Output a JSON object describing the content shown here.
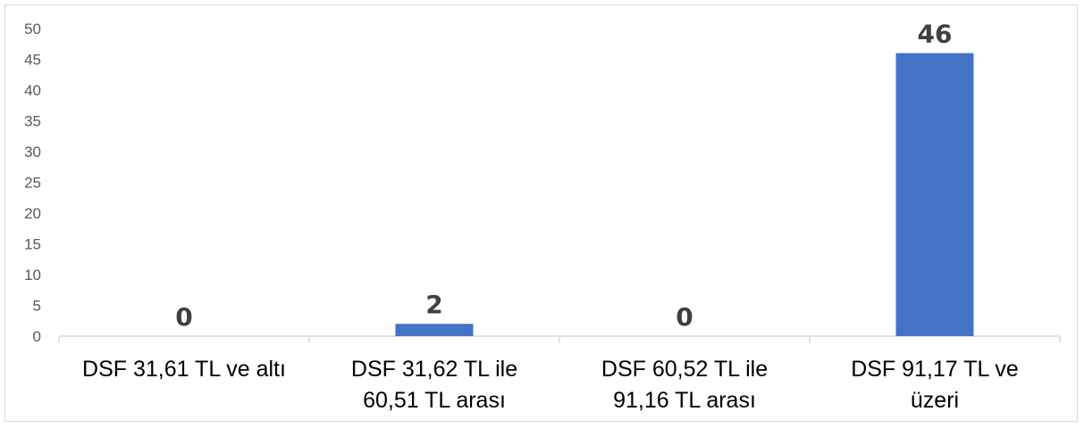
{
  "chart_data": {
    "type": "bar",
    "categories": [
      [
        "DSF 31,61 TL ve altı"
      ],
      [
        "DSF 31,62 TL ile",
        "60,51 TL arası"
      ],
      [
        "DSF 60,52 TL ile",
        "91,16 TL arası"
      ],
      [
        "DSF 91,17 TL ve",
        "üzeri"
      ]
    ],
    "values": [
      0,
      2,
      0,
      46
    ],
    "data_labels": [
      "0",
      "2",
      "0",
      "46"
    ],
    "ylim": [
      0,
      50
    ],
    "yticks": [
      0,
      5,
      10,
      15,
      20,
      25,
      30,
      35,
      40,
      45,
      50
    ],
    "ytick_labels": [
      "0",
      "5",
      "10",
      "15",
      "20",
      "25",
      "30",
      "35",
      "40",
      "45",
      "50"
    ],
    "title": "",
    "xlabel": "",
    "ylabel": "",
    "grid": false,
    "legend": "none",
    "colors": {
      "bar": "#4472c4",
      "axis": "#d9d9d9",
      "label": "#404040"
    }
  }
}
